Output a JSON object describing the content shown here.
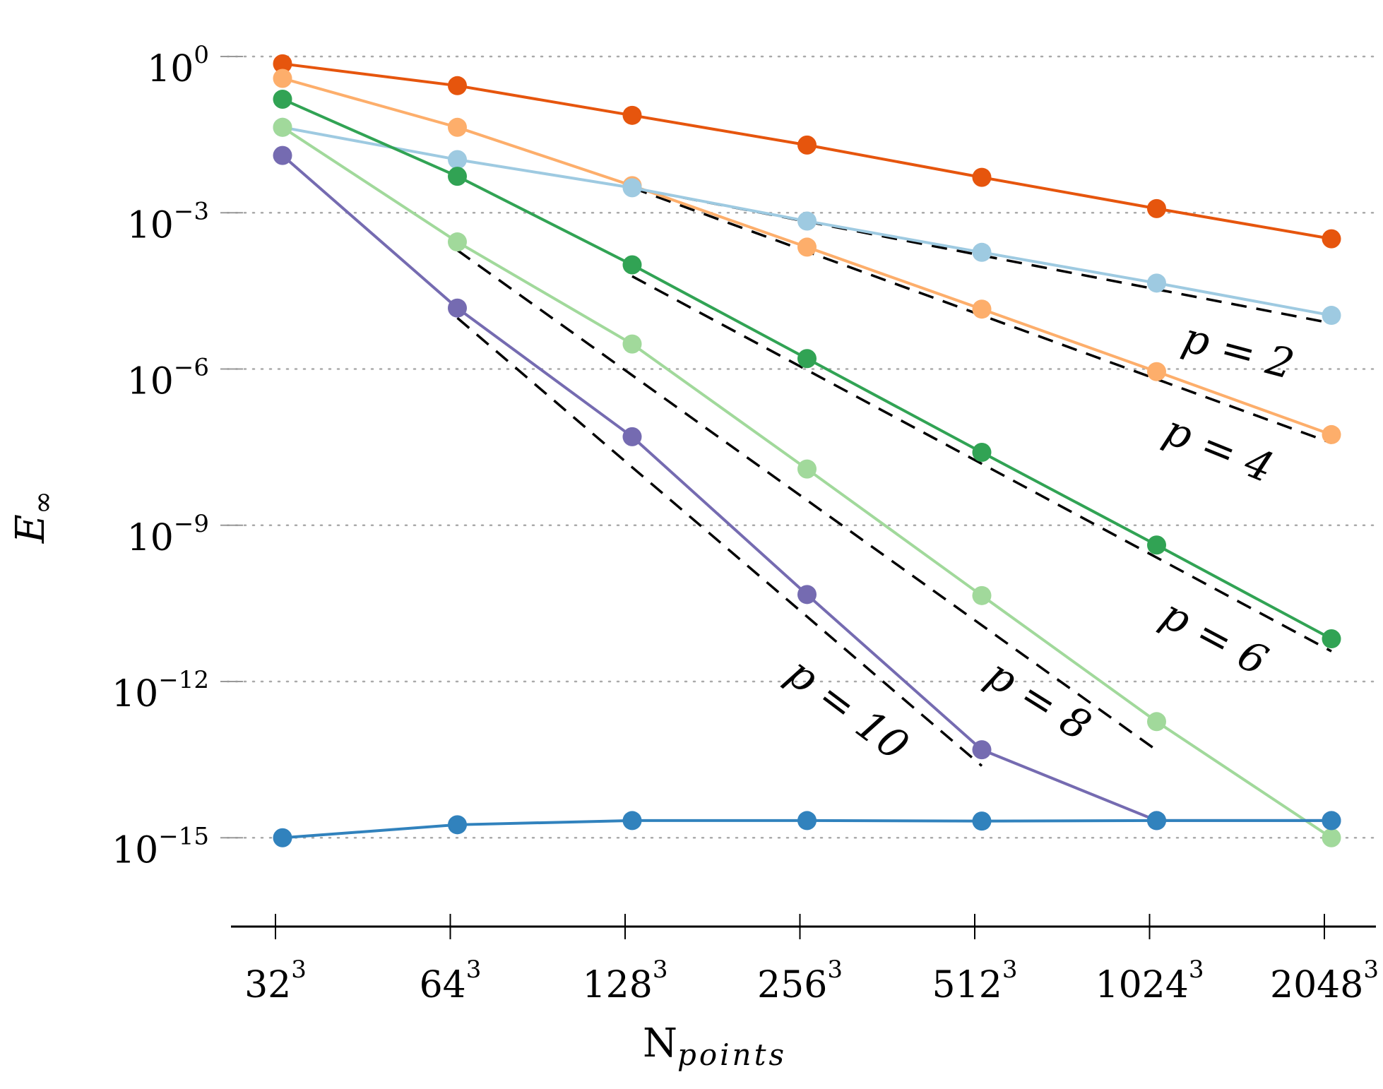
{
  "chart_data": {
    "type": "line",
    "xlabel": {
      "base": "N",
      "sub": "points"
    },
    "ylabel": {
      "base": "E",
      "sub": "∞"
    },
    "y_scale": "log",
    "ylim_exp": [
      -16.5,
      0.8
    ],
    "grid": "horizontal dotted",
    "x": [
      "32",
      "64",
      "128",
      "256",
      "512",
      "1024",
      "2048"
    ],
    "x_tick_exponent": "3",
    "y_ticks": [
      {
        "exp": 0,
        "base": "10",
        "sup": "0"
      },
      {
        "exp": -3,
        "base": "10",
        "sup": "−3"
      },
      {
        "exp": -6,
        "base": "10",
        "sup": "−6"
      },
      {
        "exp": -9,
        "base": "10",
        "sup": "−9"
      },
      {
        "exp": -12,
        "base": "10",
        "sup": "−12"
      },
      {
        "exp": -15,
        "base": "10",
        "sup": "−15"
      }
    ],
    "series": [
      {
        "color": "#e6550d",
        "log10_values": [
          -0.14,
          -0.56,
          -1.13,
          -1.7,
          -2.32,
          -2.92,
          -3.5
        ]
      },
      {
        "color": "#fdae6b",
        "log10_values": [
          -0.42,
          -1.36,
          -2.48,
          -3.66,
          -4.85,
          -6.05,
          -7.26
        ]
      },
      {
        "color": "#9ecae1",
        "log10_values": [
          -1.36,
          -1.98,
          -2.52,
          -3.16,
          -3.76,
          -4.35,
          -4.97
        ]
      },
      {
        "color": "#31a354",
        "log10_values": [
          -0.82,
          -2.3,
          -4.0,
          -5.8,
          -7.6,
          -9.38,
          -11.18
        ]
      },
      {
        "color": "#a1d99b",
        "log10_values": [
          -1.36,
          -3.56,
          -5.52,
          -7.92,
          -10.35,
          -12.77,
          -15.0
        ]
      },
      {
        "color": "#756bb1",
        "log10_values": [
          -1.9,
          -4.83,
          -7.3,
          -10.33,
          -13.31,
          -14.67,
          -14.67
        ]
      },
      {
        "color": "#3182bd",
        "log10_values": [
          -15.0,
          -14.75,
          -14.67,
          -14.67,
          -14.68,
          -14.67,
          -14.67
        ]
      }
    ],
    "reference_lines": [
      {
        "label": "p = 2",
        "from": [
          2,
          -2.52
        ],
        "to": [
          6,
          -5.12
        ]
      },
      {
        "label": "p = 4",
        "from": [
          2,
          -2.52
        ],
        "to": [
          6,
          -7.42
        ]
      },
      {
        "label": "p = 6",
        "from": [
          2,
          -4.22
        ],
        "to": [
          6,
          -11.42
        ]
      },
      {
        "label": "p = 8",
        "from": [
          1,
          -3.72
        ],
        "to": [
          5,
          -13.32
        ]
      },
      {
        "label": "p = 10",
        "from": [
          1,
          -5.02
        ],
        "to": [
          4,
          -13.62
        ]
      }
    ]
  }
}
